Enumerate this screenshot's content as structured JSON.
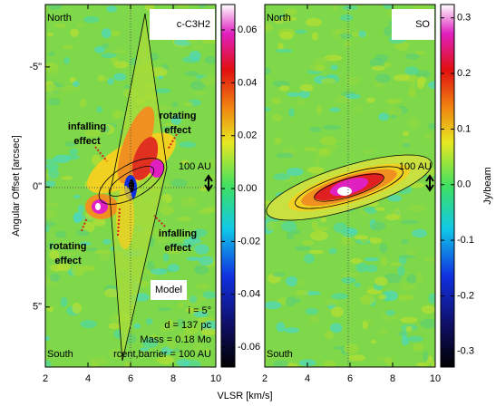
{
  "chart_data": [
    {
      "type": "heatmap",
      "title": "c-C3H2",
      "xlabel": "VLSR [km/s]",
      "ylabel": "Angular Offset [arcsec]",
      "xlim": [
        2,
        10
      ],
      "xticks": [
        2,
        4,
        6,
        8,
        10
      ],
      "ylim": [
        7.5,
        -7.6
      ],
      "yticks": [
        {
          "value": -5,
          "label": "-5\""
        },
        {
          "value": 0,
          "label": "0\""
        },
        {
          "value": 5,
          "label": "5\""
        }
      ],
      "clim": [
        -0.0675,
        0.0696
      ],
      "cticks": [
        -0.06,
        -0.04,
        -0.02,
        {
          "value": 0,
          "label": "0.00"
        },
        0.02,
        0.04,
        0.06
      ],
      "annotations": [
        "North",
        "South",
        "100 AU",
        "infalling",
        "effect",
        "rotating",
        "effect",
        "infalling",
        "effect",
        "rotating",
        "effect",
        "Model",
        "i = 5°",
        "d = 137 pc",
        "Mass = 0.18 Mo",
        "rcent,barrier = 100 AU"
      ]
    },
    {
      "type": "heatmap",
      "title": "SO",
      "xlim": [
        2,
        10
      ],
      "xticks": [
        2,
        4,
        6,
        8,
        10
      ],
      "ylim": [
        7.5,
        -7.6
      ],
      "clim": [
        -0.328,
        0.324
      ],
      "cticks": [
        -0.3,
        -0.2,
        -0.1,
        {
          "value": 0,
          "label": "0.0"
        },
        0.1,
        0.2,
        0.3
      ],
      "clabel": "Jy/beam",
      "annotations": [
        "North",
        "South",
        "100 AU"
      ]
    }
  ]
}
